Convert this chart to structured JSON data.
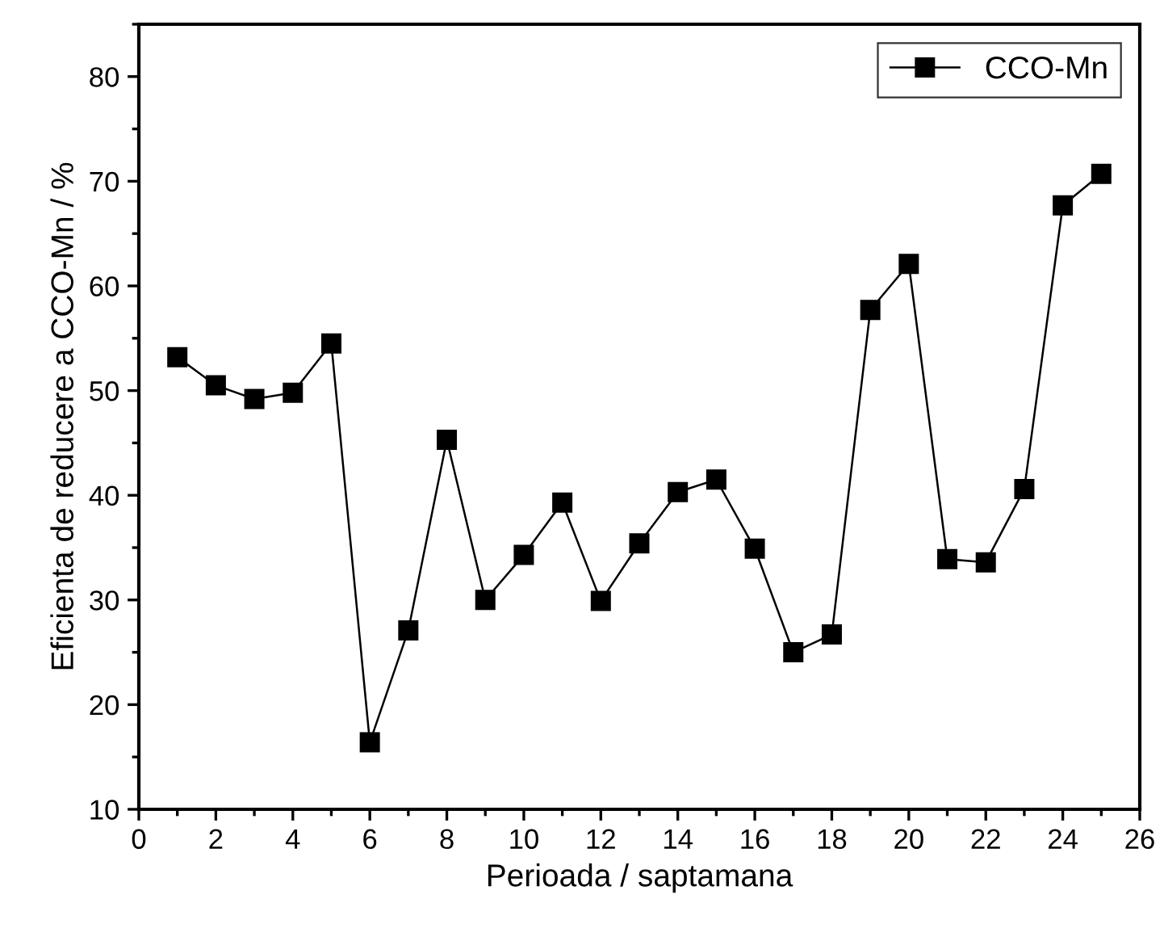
{
  "chart_data": {
    "type": "line",
    "xlabel": "Perioada / saptamana",
    "ylabel": "Eficienta de reducere a CCO-Mn / %",
    "x": [
      1,
      2,
      3,
      4,
      5,
      6,
      7,
      8,
      9,
      10,
      11,
      12,
      13,
      14,
      15,
      16,
      17,
      18,
      19,
      20,
      21,
      22,
      23,
      24,
      25
    ],
    "series": [
      {
        "name": "CCO-Mn",
        "color": "#000000",
        "values": [
          53.2,
          50.5,
          49.2,
          49.8,
          54.5,
          16.4,
          27.1,
          45.3,
          30.0,
          34.3,
          39.3,
          29.9,
          35.4,
          40.3,
          41.5,
          34.9,
          25.0,
          26.7,
          57.7,
          62.1,
          33.9,
          33.6,
          40.6,
          67.7,
          70.7
        ]
      }
    ],
    "xlim": [
      0,
      26
    ],
    "xticks": [
      0,
      2,
      4,
      6,
      8,
      10,
      12,
      14,
      16,
      18,
      20,
      22,
      24,
      26
    ],
    "ylim": [
      10,
      85
    ],
    "yticks": [
      10,
      20,
      30,
      40,
      50,
      60,
      70,
      80
    ],
    "marker": "square",
    "line_style": "solid",
    "legend": "top right",
    "grid": false
  }
}
